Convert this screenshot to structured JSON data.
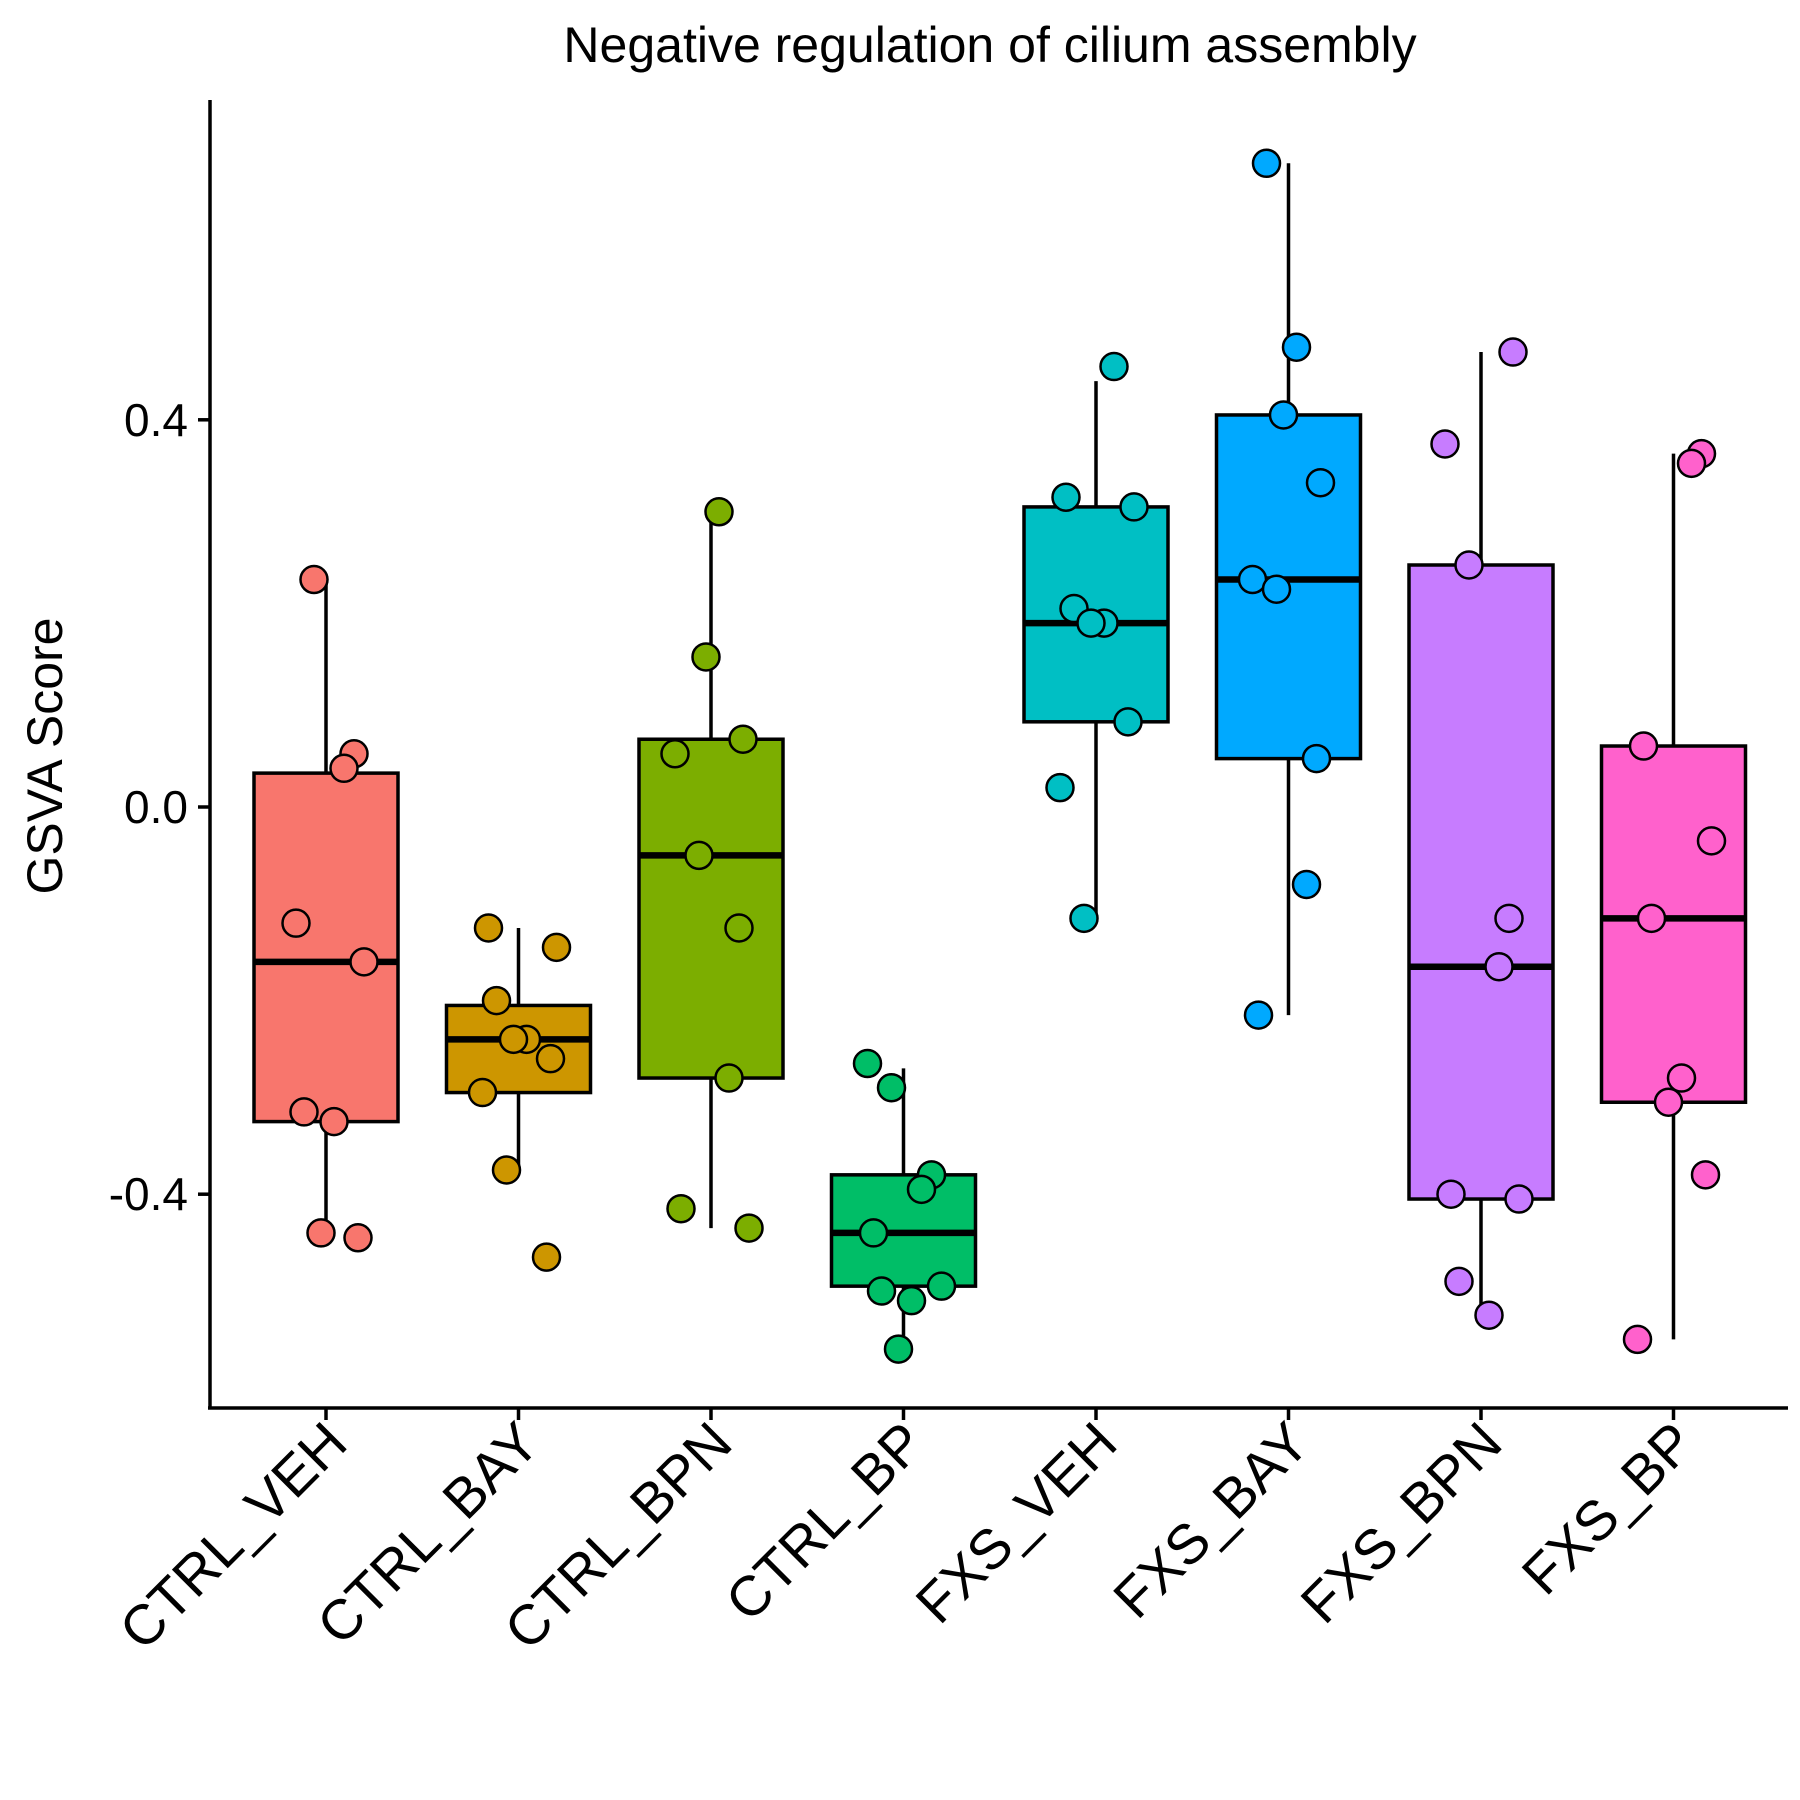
{
  "chart_data": {
    "type": "box",
    "title": "Negative regulation of cilium assembly",
    "xlabel": "",
    "ylabel": "GSVA Score",
    "ylim": [
      -0.62,
      0.68
    ],
    "yticks": [
      -0.4,
      0.0,
      0.4
    ],
    "ytick_labels": [
      "-0.4",
      "0.0",
      "0.4"
    ],
    "grid": false,
    "legend": "none",
    "categories": [
      "CTRL_VEH",
      "CTRL_BAY",
      "CTRL_BPN",
      "CTRL_BP",
      "FXS_VEH",
      "FXS_BAY",
      "FXS_BPN",
      "FXS_BP"
    ],
    "series": [
      {
        "category": "CTRL_VEH",
        "color": "#F8766D",
        "box": {
          "lower_whisker": -0.44,
          "q1": -0.325,
          "median": -0.16,
          "q3": 0.035,
          "upper_whisker": 0.235
        },
        "points": [
          0.235,
          0.055,
          0.04,
          -0.12,
          -0.16,
          -0.315,
          -0.325,
          -0.44,
          -0.445
        ]
      },
      {
        "category": "CTRL_BAY",
        "color": "#CD9600",
        "box": {
          "lower_whisker": -0.375,
          "q1": -0.295,
          "median": -0.24,
          "q3": -0.205,
          "upper_whisker": -0.125
        },
        "points": [
          -0.125,
          -0.145,
          -0.2,
          -0.24,
          -0.24,
          -0.26,
          -0.295,
          -0.375,
          -0.465
        ]
      },
      {
        "category": "CTRL_BPN",
        "color": "#7CAE00",
        "box": {
          "lower_whisker": -0.435,
          "q1": -0.28,
          "median": -0.05,
          "q3": 0.07,
          "upper_whisker": 0.305
        },
        "points": [
          0.305,
          0.155,
          0.07,
          0.055,
          -0.05,
          -0.125,
          -0.28,
          -0.415,
          -0.435
        ]
      },
      {
        "category": "CTRL_BP",
        "color": "#00BE67",
        "box": {
          "lower_whisker": -0.56,
          "q1": -0.495,
          "median": -0.44,
          "q3": -0.38,
          "upper_whisker": -0.27
        },
        "points": [
          -0.265,
          -0.29,
          -0.38,
          -0.395,
          -0.44,
          -0.495,
          -0.5,
          -0.51,
          -0.56
        ]
      },
      {
        "category": "FXS_VEH",
        "color": "#00BFC4",
        "box": {
          "lower_whisker": -0.115,
          "q1": 0.088,
          "median": 0.19,
          "q3": 0.31,
          "upper_whisker": 0.44
        },
        "points": [
          0.455,
          0.32,
          0.31,
          0.205,
          0.19,
          0.19,
          0.088,
          0.02,
          -0.115
        ]
      },
      {
        "category": "FXS_BAY",
        "color": "#00A9FF",
        "box": {
          "lower_whisker": -0.215,
          "q1": 0.05,
          "median": 0.235,
          "q3": 0.405,
          "upper_whisker": 0.665
        },
        "points": [
          0.665,
          0.475,
          0.405,
          0.335,
          0.235,
          0.225,
          0.05,
          -0.08,
          -0.215
        ]
      },
      {
        "category": "FXS_BPN",
        "color": "#C77CFF",
        "box": {
          "lower_whisker": -0.525,
          "q1": -0.405,
          "median": -0.165,
          "q3": 0.25,
          "upper_whisker": 0.47
        },
        "points": [
          0.47,
          0.375,
          0.25,
          -0.115,
          -0.165,
          -0.4,
          -0.405,
          -0.49,
          -0.525
        ]
      },
      {
        "category": "FXS_BP",
        "color": "#FF61CC",
        "box": {
          "lower_whisker": -0.55,
          "q1": -0.305,
          "median": -0.115,
          "q3": 0.063,
          "upper_whisker": 0.365
        },
        "points": [
          0.365,
          0.355,
          0.063,
          -0.035,
          -0.115,
          -0.28,
          -0.305,
          -0.38,
          -0.55
        ]
      }
    ]
  }
}
